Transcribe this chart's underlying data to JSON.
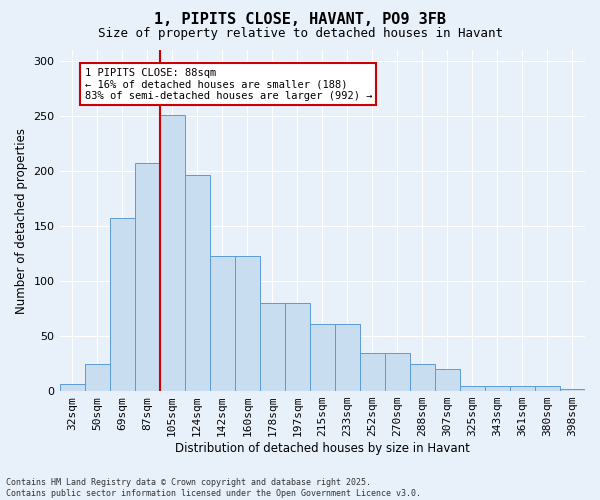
{
  "title": "1, PIPITS CLOSE, HAVANT, PO9 3FB",
  "subtitle": "Size of property relative to detached houses in Havant",
  "xlabel": "Distribution of detached houses by size in Havant",
  "ylabel": "Number of detached properties",
  "footnote": "Contains HM Land Registry data © Crown copyright and database right 2025.\nContains public sector information licensed under the Open Government Licence v3.0.",
  "categories": [
    "32sqm",
    "50sqm",
    "69sqm",
    "87sqm",
    "105sqm",
    "124sqm",
    "142sqm",
    "160sqm",
    "178sqm",
    "197sqm",
    "215sqm",
    "233sqm",
    "252sqm",
    "270sqm",
    "288sqm",
    "307sqm",
    "325sqm",
    "343sqm",
    "361sqm",
    "380sqm",
    "398sqm"
  ],
  "values": [
    6,
    25,
    157,
    207,
    251,
    196,
    123,
    123,
    80,
    80,
    61,
    61,
    35,
    35,
    25,
    20,
    5,
    5,
    5,
    5,
    2
  ],
  "bar_color": "#c9ddf0",
  "bar_edge_color": "#5b9bd5",
  "background_color": "#e8f0fa",
  "plot_bg_color": "#e8f0fa",
  "grid_color": "#ffffff",
  "annotation_text": "1 PIPITS CLOSE: 88sqm\n← 16% of detached houses are smaller (188)\n83% of semi-detached houses are larger (992) →",
  "annotation_box_color": "#ffffff",
  "annotation_box_edge_color": "#cc0000",
  "vline_color": "#cc0000",
  "ylim": [
    0,
    310
  ],
  "yticks": [
    0,
    50,
    100,
    150,
    200,
    250,
    300
  ],
  "title_fontsize": 11,
  "subtitle_fontsize": 9,
  "ylabel_fontsize": 8.5,
  "xlabel_fontsize": 8.5,
  "tick_fontsize": 8,
  "annot_fontsize": 7.5
}
